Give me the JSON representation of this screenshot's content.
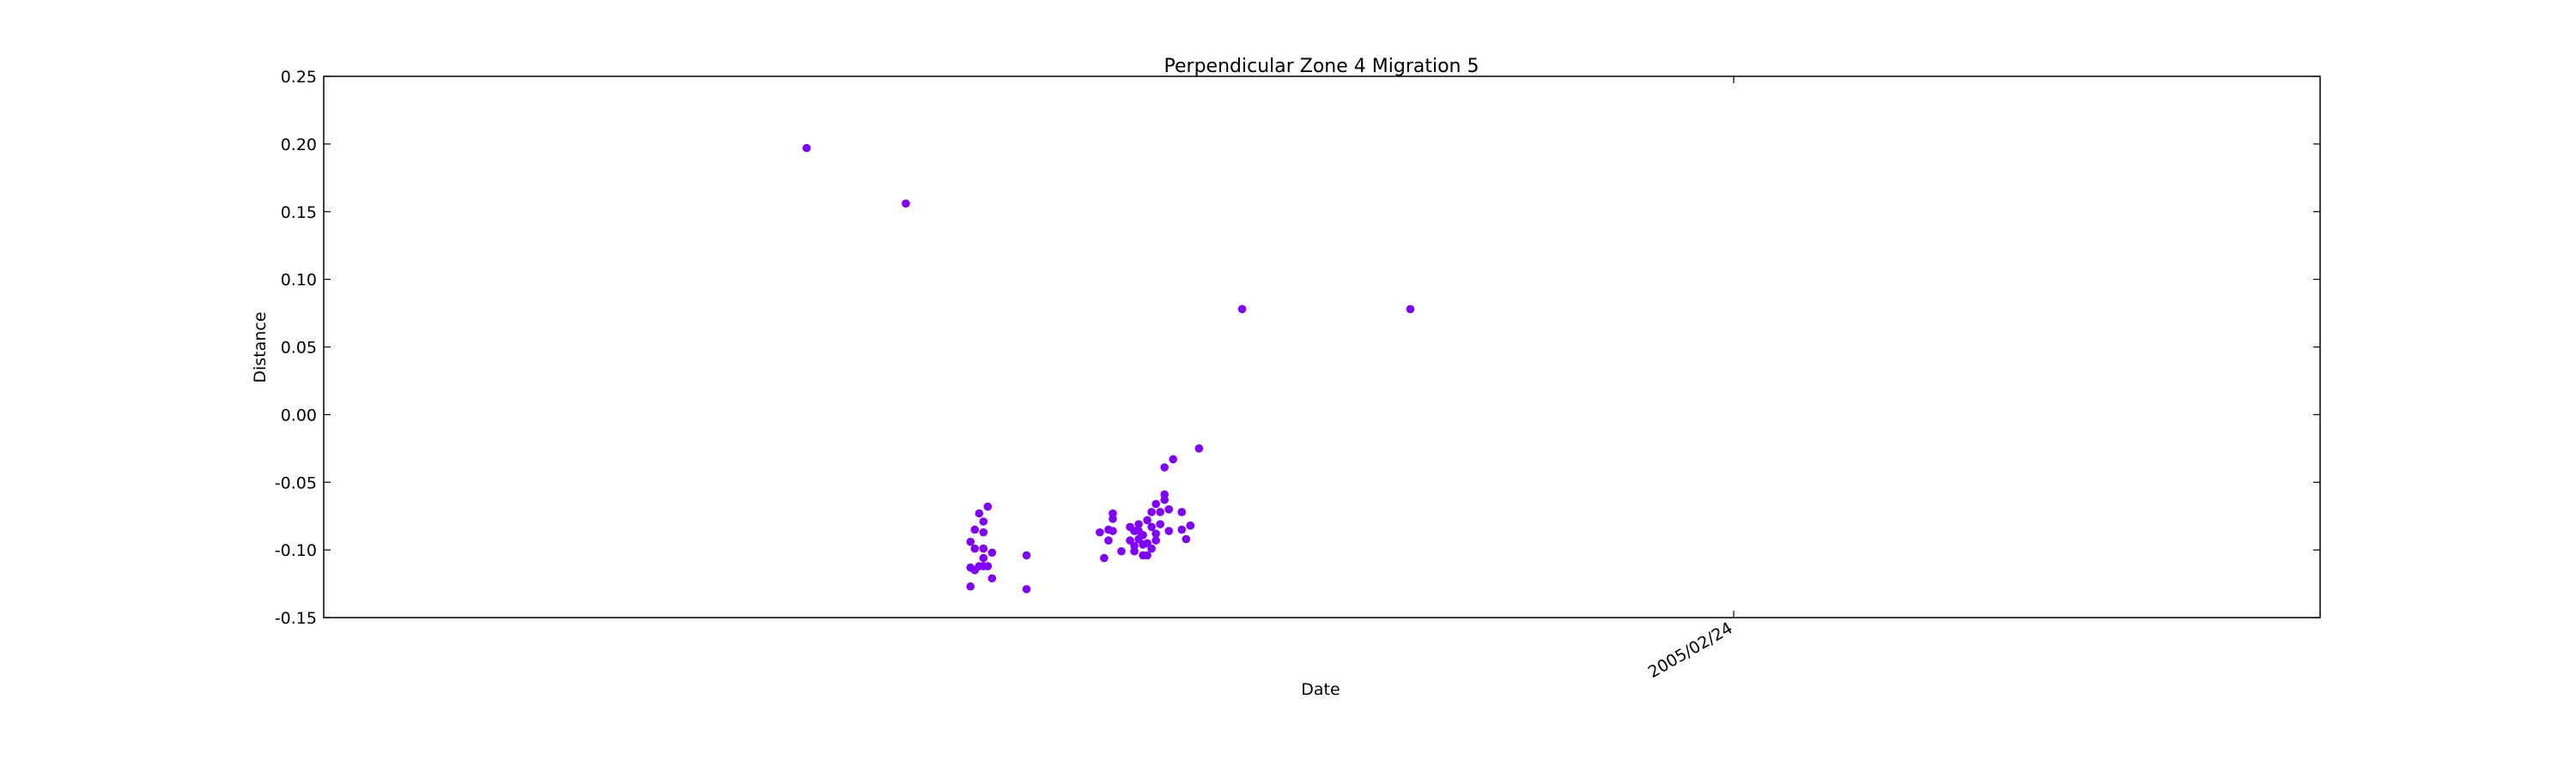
{
  "chart_data": {
    "type": "scatter",
    "title": "Perpendicular Zone 4 Migration 5",
    "xlabel": "Date",
    "ylabel": "Distance",
    "x_tick_labels": [
      "2005/02/24"
    ],
    "y_tick_labels": [
      "0.25",
      "0.20",
      "0.15",
      "0.10",
      "0.05",
      "0.00",
      "-0.05",
      "-0.10",
      "-0.15"
    ],
    "ylim": [
      -0.15,
      0.25
    ],
    "xlim": [
      "2004/04/03",
      "2005/07/10"
    ],
    "y_ticks": [
      0.25,
      0.2,
      0.15,
      0.1,
      0.05,
      0.0,
      -0.05,
      -0.1,
      -0.15
    ],
    "marker_color": "#7f00ff",
    "grid": false,
    "series": [
      {
        "x": [
          "2004/07/24",
          "2004/08/16",
          "2004/08/31",
          "2004/08/31",
          "2004/08/31",
          "2004/09/01",
          "2004/09/01",
          "2004/09/01",
          "2004/09/02",
          "2004/09/02",
          "2004/09/03",
          "2004/09/03",
          "2004/09/03",
          "2004/09/03",
          "2004/09/03",
          "2004/09/04",
          "2004/09/04",
          "2004/09/05",
          "2004/09/05",
          "2004/09/13",
          "2004/09/13",
          "2004/09/30",
          "2004/10/01",
          "2004/10/02",
          "2004/10/02",
          "2004/10/03",
          "2004/10/03",
          "2004/10/03",
          "2004/10/05",
          "2004/10/07",
          "2004/10/07",
          "2004/10/08",
          "2004/10/08",
          "2004/10/08",
          "2004/10/09",
          "2004/10/09",
          "2004/10/09",
          "2004/10/10",
          "2004/10/10",
          "2004/10/10",
          "2004/10/11",
          "2004/10/11",
          "2004/10/11",
          "2004/10/12",
          "2004/10/12",
          "2004/10/12",
          "2004/10/13",
          "2004/10/13",
          "2004/10/13",
          "2004/10/14",
          "2004/10/14",
          "2004/10/15",
          "2004/10/15",
          "2004/10/15",
          "2004/10/16",
          "2004/10/16",
          "2004/10/17",
          "2004/10/19",
          "2004/10/19",
          "2004/10/20",
          "2004/10/21",
          "2004/10/21",
          "2004/10/23",
          "2004/11/02",
          "2004/12/11"
        ],
        "y": [
          0.197,
          0.156,
          -0.094,
          -0.113,
          -0.127,
          -0.115,
          -0.099,
          -0.085,
          -0.112,
          -0.073,
          -0.079,
          -0.087,
          -0.106,
          -0.099,
          -0.112,
          -0.068,
          -0.112,
          -0.102,
          -0.121,
          -0.104,
          -0.129,
          -0.087,
          -0.106,
          -0.085,
          -0.093,
          -0.077,
          -0.073,
          -0.086,
          -0.101,
          -0.083,
          -0.093,
          -0.097,
          -0.086,
          -0.101,
          -0.081,
          -0.086,
          -0.092,
          -0.089,
          -0.096,
          -0.104,
          -0.078,
          -0.095,
          -0.104,
          -0.072,
          -0.083,
          -0.099,
          -0.093,
          -0.066,
          -0.088,
          -0.072,
          -0.081,
          -0.063,
          -0.059,
          -0.039,
          -0.07,
          -0.086,
          -0.033,
          -0.072,
          -0.085,
          -0.092,
          -0.082,
          -0.082,
          -0.025,
          0.078,
          0.078
        ]
      }
    ]
  }
}
